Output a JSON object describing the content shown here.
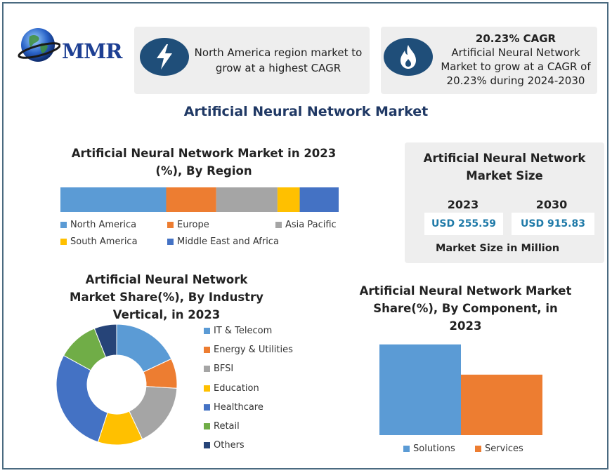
{
  "logo": {
    "text": "MMR"
  },
  "card_left": {
    "icon": "lightning-icon",
    "text": "North America region market to grow at a highest CAGR"
  },
  "card_right": {
    "icon": "flame-icon",
    "headline": "20.23% CAGR",
    "text": "Artificial Neural Network Market to grow at a CAGR of 20.23% during 2024-2030"
  },
  "main_title": "Artificial Neural Network Market",
  "market_size": {
    "title": "Artificial Neural Network Market Size",
    "years": [
      "2023",
      "2030"
    ],
    "values": [
      "USD 255.59",
      "USD 915.83"
    ],
    "footer": "Market Size in Million"
  },
  "colors": {
    "blue": "#5b9bd5",
    "orange": "#ed7d31",
    "gray": "#a5a5a5",
    "yellow": "#ffc000",
    "darkblue": "#4472c4",
    "green": "#70ad47",
    "navy": "#264478"
  },
  "chart_data": [
    {
      "type": "bar",
      "subtype": "stacked-100",
      "title": "Artificial Neural Network Market in 2023 (%), By Region",
      "categories": [
        "North America",
        "Europe",
        "Asia Pacific",
        "South America",
        "Middle East and Africa"
      ],
      "values": [
        38,
        18,
        22,
        8,
        14
      ],
      "legend": "bottom"
    },
    {
      "type": "pie",
      "subtype": "donut",
      "title": "Artificial Neural Network Market Share(%), By Industry Vertical, in 2023",
      "categories": [
        "IT & Telecom",
        "Energy & Utilities",
        "BFSI",
        "Education",
        "Healthcare",
        "Retail",
        "Others"
      ],
      "values": [
        18,
        8,
        17,
        12,
        28,
        11,
        6
      ],
      "legend": "right"
    },
    {
      "type": "bar",
      "title": "Artificial Neural Network Market Share(%), By Component, in 2023",
      "categories": [
        "Solutions",
        "Services"
      ],
      "values": [
        60,
        40
      ],
      "ylim": [
        0,
        65
      ],
      "legend": "bottom"
    }
  ]
}
